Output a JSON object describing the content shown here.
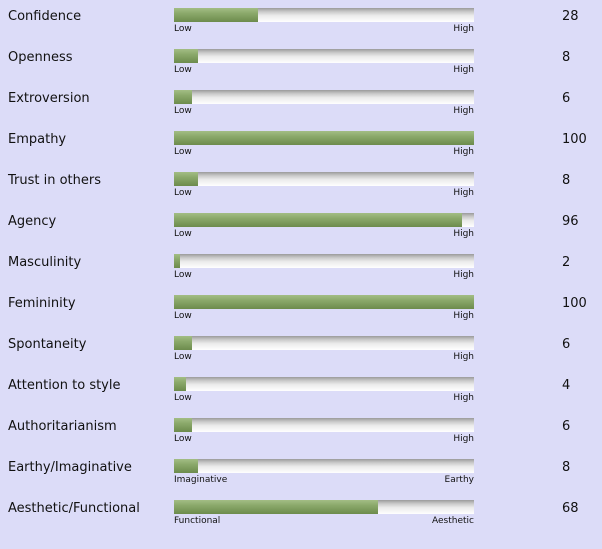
{
  "traits": [
    {
      "label": "Confidence",
      "low": "Low",
      "high": "High",
      "score": "28",
      "value": 28
    },
    {
      "label": "Openness",
      "low": "Low",
      "high": "High",
      "score": "8",
      "value": 8
    },
    {
      "label": "Extroversion",
      "low": "Low",
      "high": "High",
      "score": "6",
      "value": 6
    },
    {
      "label": "Empathy",
      "low": "Low",
      "high": "High",
      "score": "100",
      "value": 100
    },
    {
      "label": "Trust in others",
      "low": "Low",
      "high": "High",
      "score": "8",
      "value": 8
    },
    {
      "label": "Agency",
      "low": "Low",
      "high": "High",
      "score": "96",
      "value": 96
    },
    {
      "label": "Masculinity",
      "low": "Low",
      "high": "High",
      "score": "2",
      "value": 2
    },
    {
      "label": "Femininity",
      "low": "Low",
      "high": "High",
      "score": "100",
      "value": 100
    },
    {
      "label": "Spontaneity",
      "low": "Low",
      "high": "High",
      "score": "6",
      "value": 6
    },
    {
      "label": "Attention to style",
      "low": "Low",
      "high": "High",
      "score": "4",
      "value": 4
    },
    {
      "label": "Authoritarianism",
      "low": "Low",
      "high": "High",
      "score": "6",
      "value": 6
    },
    {
      "label": "Earthy/Imaginative",
      "low": "Imaginative",
      "high": "Earthy",
      "score": "8",
      "value": 8
    },
    {
      "label": "Aesthetic/Functional",
      "low": "Functional",
      "high": "Aesthetic",
      "score": "68",
      "value": 68
    }
  ],
  "colors": {
    "background": "#dcdcf8",
    "bar_fill": "#8aa86a",
    "bar_track": "#d6d6d6"
  }
}
